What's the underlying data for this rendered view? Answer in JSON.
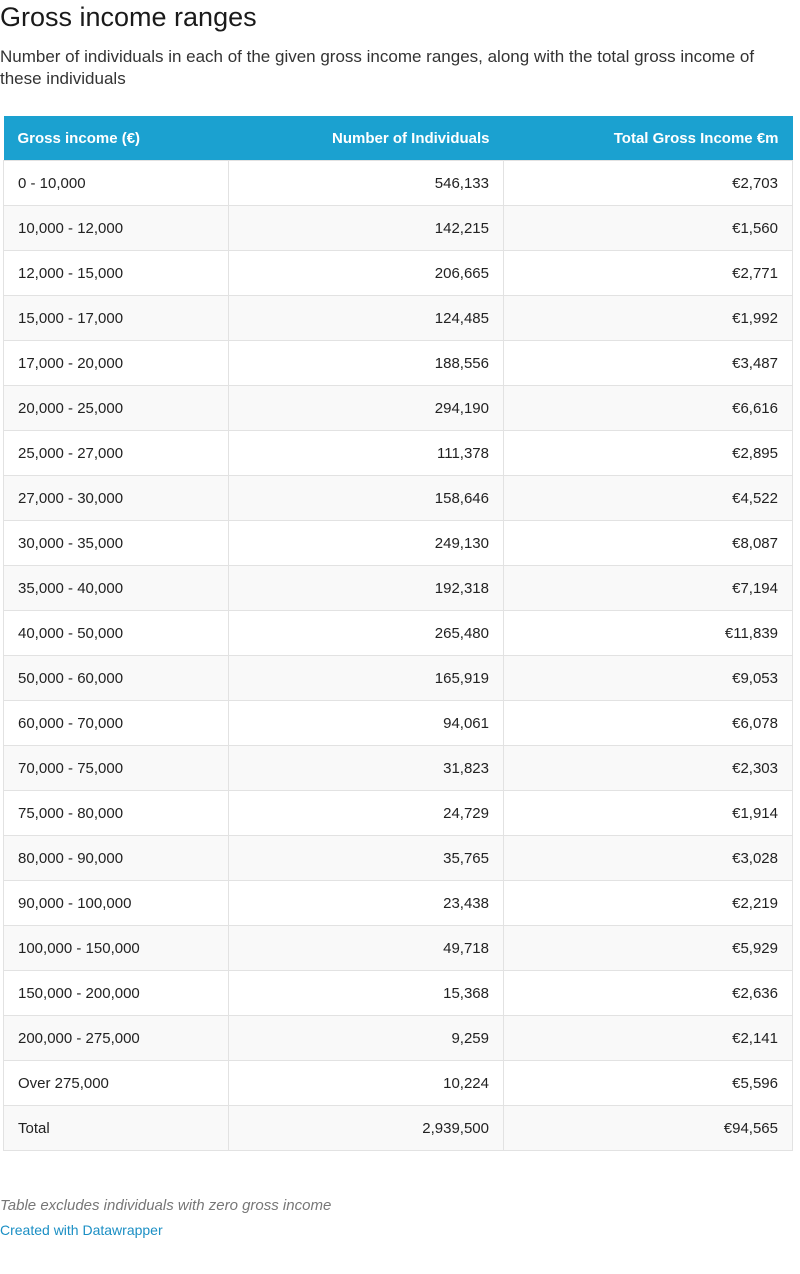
{
  "header": {
    "title": "Gross income ranges",
    "subtitle": "Number of individuals in each of the given gross income ranges, along with the total gross income of these individuals"
  },
  "table": {
    "columns": [
      "Gross income (€)",
      "Number of Individuals",
      "Total Gross Income €m"
    ],
    "rows": [
      [
        "0 - 10,000",
        "546,133",
        "€2,703"
      ],
      [
        "10,000 - 12,000",
        "142,215",
        "€1,560"
      ],
      [
        "12,000 - 15,000",
        "206,665",
        "€2,771"
      ],
      [
        "15,000 - 17,000",
        "124,485",
        "€1,992"
      ],
      [
        "17,000 - 20,000",
        "188,556",
        "€3,487"
      ],
      [
        "20,000 - 25,000",
        "294,190",
        "€6,616"
      ],
      [
        "25,000 - 27,000",
        "111,378",
        "€2,895"
      ],
      [
        "27,000 - 30,000",
        "158,646",
        "€4,522"
      ],
      [
        "30,000 - 35,000",
        "249,130",
        "€8,087"
      ],
      [
        "35,000 - 40,000",
        "192,318",
        "€7,194"
      ],
      [
        "40,000 - 50,000",
        "265,480",
        "€11,839"
      ],
      [
        "50,000 - 60,000",
        "165,919",
        "€9,053"
      ],
      [
        "60,000 - 70,000",
        "94,061",
        "€6,078"
      ],
      [
        "70,000 - 75,000",
        "31,823",
        "€2,303"
      ],
      [
        "75,000 - 80,000",
        "24,729",
        "€1,914"
      ],
      [
        "80,000 - 90,000",
        "35,765",
        "€3,028"
      ],
      [
        "90,000 - 100,000",
        "23,438",
        "€2,219"
      ],
      [
        "100,000 - 150,000",
        "49,718",
        "€5,929"
      ],
      [
        "150,000 - 200,000",
        "15,368",
        "€2,636"
      ],
      [
        "200,000 - 275,000",
        "9,259",
        "€2,141"
      ],
      [
        "Over 275,000",
        "10,224",
        "€5,596"
      ],
      [
        "Total",
        "2,939,500",
        "€94,565"
      ]
    ]
  },
  "footer": {
    "note": "Table excludes individuals with zero gross income",
    "credit": "Created with Datawrapper"
  }
}
